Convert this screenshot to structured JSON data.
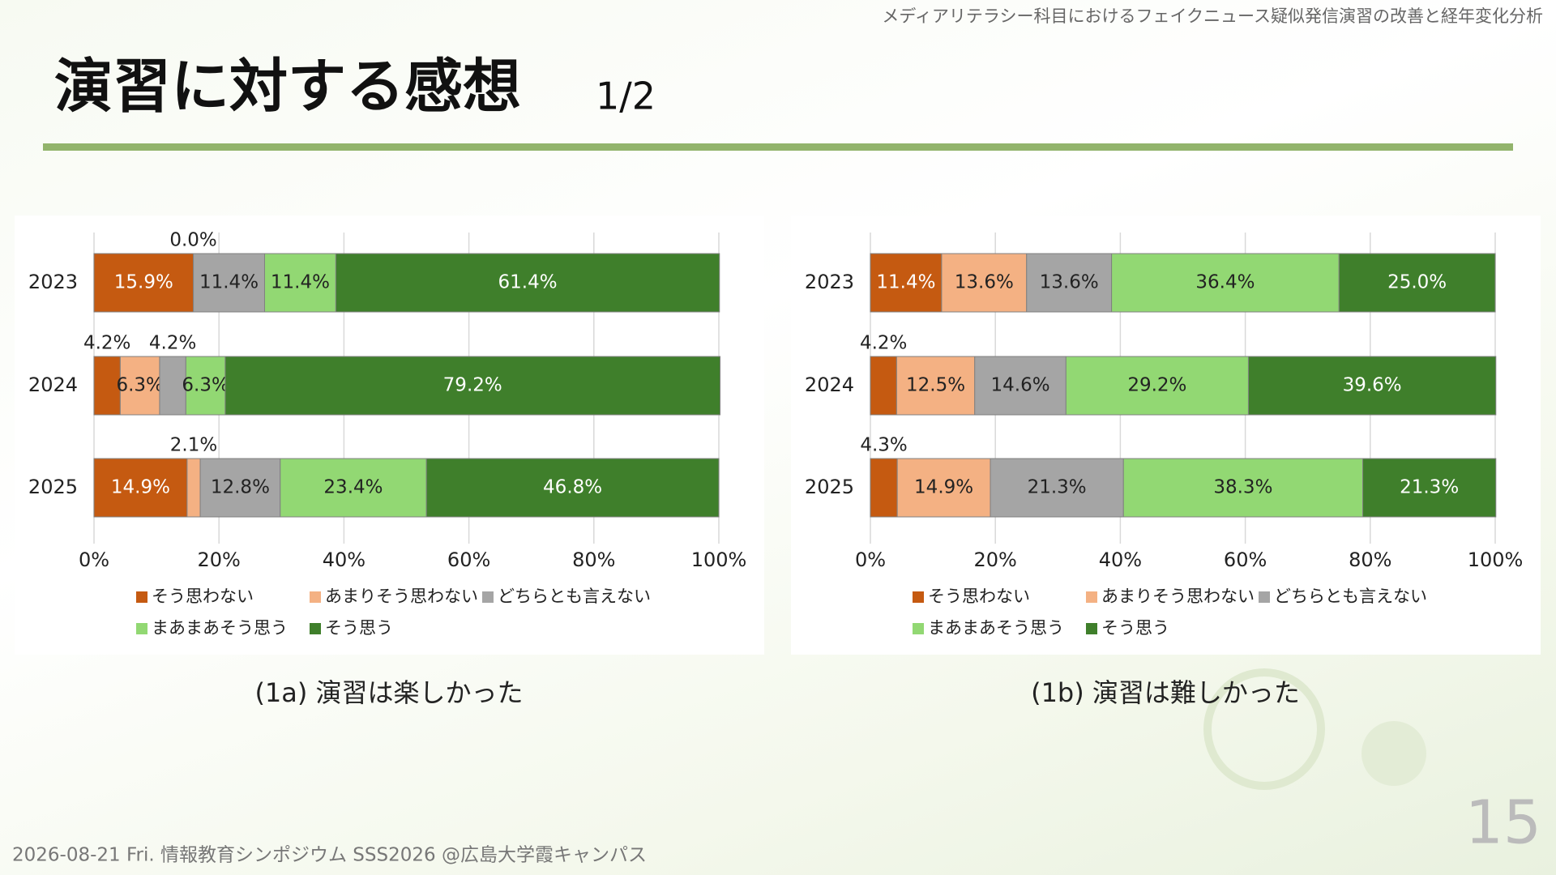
{
  "header": {
    "running_title": "メディアリテラシー科目におけるフェイクニュース疑似発信演習の改善と経年変化分析",
    "title": "演習に対する感想",
    "page_part": "1/2"
  },
  "footer": {
    "event": "2026-08-21 Fri. 情報教育シンポジウム SSS2026 @広島大学霞キャンパス",
    "page_number": "15"
  },
  "chart_data": [
    {
      "type": "stacked-bar-horizontal",
      "title": "(1a) 演習は楽しかった",
      "categories": [
        "2023",
        "2024",
        "2025"
      ],
      "series": [
        {
          "name": "そう思わない",
          "color": "#c55a11",
          "values": [
            15.9,
            4.2,
            14.9
          ],
          "value_labels": [
            "15.9%",
            "4.2%",
            "14.9%"
          ]
        },
        {
          "name": "あまりそう思わない",
          "color": "#f4b183",
          "values": [
            0.0,
            6.3,
            2.1
          ],
          "value_labels": [
            "0.0%",
            "6.3%",
            "2.1%"
          ]
        },
        {
          "name": "どちらとも言えない",
          "color": "#a5a5a5",
          "values": [
            11.4,
            4.2,
            12.8
          ],
          "value_labels": [
            "11.4%",
            "4.2%",
            "12.8%"
          ]
        },
        {
          "name": "まあまあそう思う",
          "color": "#92d873",
          "values": [
            11.4,
            6.3,
            23.4
          ],
          "value_labels": [
            "11.4%",
            "6.3%",
            "23.4%"
          ]
        },
        {
          "name": "そう思う",
          "color": "#3f7f2b",
          "values": [
            61.4,
            79.2,
            46.8
          ],
          "value_labels": [
            "61.4%",
            "79.2%",
            "46.8%"
          ]
        }
      ],
      "xlim": [
        0,
        100
      ],
      "xticks": [
        {
          "value": 0,
          "label": "0%"
        },
        {
          "value": 20,
          "label": "20%"
        },
        {
          "value": 40,
          "label": "40%"
        },
        {
          "value": 60,
          "label": "60%"
        },
        {
          "value": 80,
          "label": "80%"
        },
        {
          "value": 100,
          "label": "100%"
        }
      ],
      "grid": true,
      "legend": "bottom"
    },
    {
      "type": "stacked-bar-horizontal",
      "title": "(1b) 演習は難しかった",
      "categories": [
        "2023",
        "2024",
        "2025"
      ],
      "series": [
        {
          "name": "そう思わない",
          "color": "#c55a11",
          "values": [
            11.4,
            4.2,
            4.3
          ],
          "value_labels": [
            "11.4%",
            "4.2%",
            "4.3%"
          ]
        },
        {
          "name": "あまりそう思わない",
          "color": "#f4b183",
          "values": [
            13.6,
            12.5,
            14.9
          ],
          "value_labels": [
            "13.6%",
            "12.5%",
            "14.9%"
          ]
        },
        {
          "name": "どちらとも言えない",
          "color": "#a5a5a5",
          "values": [
            13.6,
            14.6,
            21.3
          ],
          "value_labels": [
            "13.6%",
            "14.6%",
            "21.3%"
          ]
        },
        {
          "name": "まあまあそう思う",
          "color": "#92d873",
          "values": [
            36.4,
            29.2,
            38.3
          ],
          "value_labels": [
            "36.4%",
            "29.2%",
            "38.3%"
          ]
        },
        {
          "name": "そう思う",
          "color": "#3f7f2b",
          "values": [
            25.0,
            39.6,
            21.3
          ],
          "value_labels": [
            "25.0%",
            "39.6%",
            "21.3%"
          ]
        }
      ],
      "xlim": [
        0,
        100
      ],
      "xticks": [
        {
          "value": 0,
          "label": "0%"
        },
        {
          "value": 20,
          "label": "20%"
        },
        {
          "value": 40,
          "label": "40%"
        },
        {
          "value": 60,
          "label": "60%"
        },
        {
          "value": 80,
          "label": "80%"
        },
        {
          "value": 100,
          "label": "100%"
        }
      ],
      "grid": true,
      "legend": "bottom"
    }
  ]
}
